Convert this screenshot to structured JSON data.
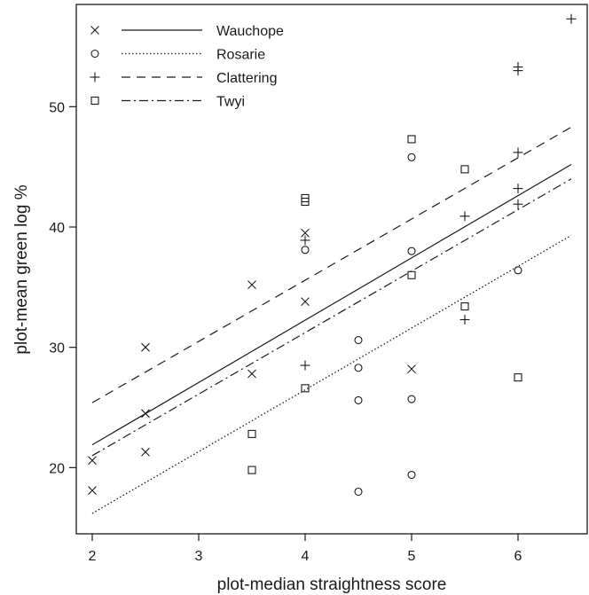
{
  "chart_data": {
    "type": "scatter",
    "xlabel": "plot-median straightness score",
    "ylabel": "plot-mean green log %",
    "xlim": [
      1.85,
      6.65
    ],
    "ylim": [
      14.5,
      58.5
    ],
    "xticks": [
      2,
      3,
      4,
      5,
      6
    ],
    "yticks": [
      20,
      30,
      40,
      50
    ],
    "grid": false,
    "legend": "top-left",
    "series": [
      {
        "name": "Wauchope",
        "marker": "x",
        "line": "solid",
        "fit": [
          [
            2,
            21.9
          ],
          [
            6.5,
            45.2
          ]
        ],
        "points": [
          [
            2,
            20.6
          ],
          [
            2,
            18.1
          ],
          [
            2.5,
            30.0
          ],
          [
            2.5,
            24.5
          ],
          [
            2.5,
            21.3
          ],
          [
            3.5,
            35.2
          ],
          [
            3.5,
            27.8
          ],
          [
            4,
            39.5
          ],
          [
            4,
            33.8
          ],
          [
            5,
            28.2
          ]
        ]
      },
      {
        "name": "Rosarie",
        "marker": "o",
        "line": "dotted",
        "fit": [
          [
            2,
            16.2
          ],
          [
            6.5,
            39.3
          ]
        ],
        "points": [
          [
            4,
            38.1
          ],
          [
            4.5,
            30.6
          ],
          [
            4.5,
            28.3
          ],
          [
            4.5,
            25.6
          ],
          [
            4.5,
            18.0
          ],
          [
            5,
            45.8
          ],
          [
            5,
            38.0
          ],
          [
            5,
            25.7
          ],
          [
            5,
            19.4
          ],
          [
            6,
            36.4
          ]
        ]
      },
      {
        "name": "Clattering",
        "marker": "+",
        "line": "dashed",
        "fit": [
          [
            2,
            25.4
          ],
          [
            6.5,
            48.3
          ]
        ],
        "points": [
          [
            4,
            38.9
          ],
          [
            4,
            28.5
          ],
          [
            5.5,
            40.9
          ],
          [
            5.5,
            32.3
          ],
          [
            6,
            53.0
          ],
          [
            6,
            53.3
          ],
          [
            6,
            46.2
          ],
          [
            6,
            43.2
          ],
          [
            6,
            41.9
          ],
          [
            6.5,
            57.3
          ]
        ]
      },
      {
        "name": "Twyi",
        "marker": "square",
        "line": "dashdot",
        "fit": [
          [
            2,
            21.0
          ],
          [
            6.5,
            44.0
          ]
        ],
        "points": [
          [
            3.5,
            22.8
          ],
          [
            3.5,
            19.8
          ],
          [
            4,
            42.4
          ],
          [
            4,
            42.1
          ],
          [
            4,
            26.6
          ],
          [
            5,
            47.3
          ],
          [
            5,
            36.0
          ],
          [
            5.5,
            44.8
          ],
          [
            5.5,
            33.4
          ],
          [
            6,
            27.5
          ]
        ]
      }
    ]
  }
}
